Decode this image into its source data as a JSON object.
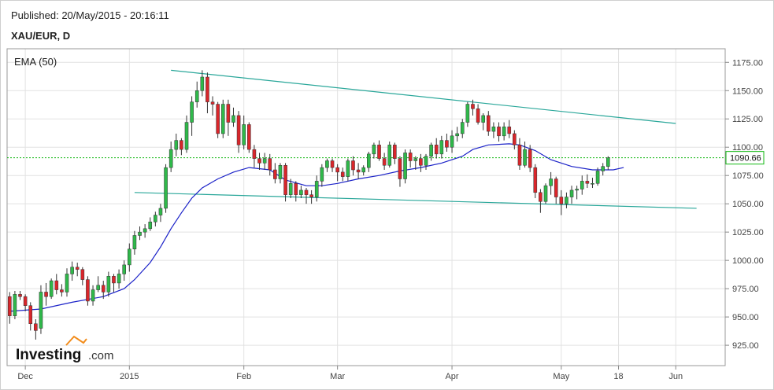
{
  "header": {
    "published": "Published: 20/May/2015 - 20:16:11",
    "symbol": "XAU/EUR, D"
  },
  "chart_data": {
    "type": "candlestick",
    "indicator_label": "EMA (50)",
    "brand": {
      "name": "Investing",
      "suffix": ".com"
    },
    "last_price_label": "1090.66",
    "y_ticks": [
      "1175.00",
      "1150.00",
      "1125.00",
      "1100.00",
      "1075.00",
      "1050.00",
      "1025.00",
      "1000.00",
      "975.00",
      "950.00",
      "925.00"
    ],
    "x_ticks": [
      {
        "label": "Dec",
        "index": 3
      },
      {
        "label": "2015",
        "index": 23
      },
      {
        "label": "Feb",
        "index": 45
      },
      {
        "label": "Mar",
        "index": 63
      },
      {
        "label": "Apr",
        "index": 85
      },
      {
        "label": "May",
        "index": 106
      },
      {
        "label": "18",
        "index": 117
      },
      {
        "label": "Jun",
        "index": 128
      }
    ],
    "ylim": [
      907,
      1187
    ],
    "x_range": [
      -0.5,
      137.5
    ],
    "colors": {
      "up": "#2fb84a",
      "down": "#d9262b",
      "ema": "#1b22c8",
      "trendline": "#2aa79a",
      "last_price": "#13b813",
      "grid": "#e2e2e2"
    },
    "trendlines": [
      {
        "from": [
          31,
          1168
        ],
        "to": [
          128,
          1121
        ]
      },
      {
        "from": [
          24,
          1060
        ],
        "to": [
          132,
          1046
        ]
      }
    ],
    "last_price": 1090.66,
    "candles": [
      [
        968,
        972,
        944,
        951
      ],
      [
        951,
        973,
        948,
        970
      ],
      [
        970,
        973,
        965,
        968
      ],
      [
        968,
        970,
        955,
        960
      ],
      [
        960,
        963,
        938,
        944
      ],
      [
        944,
        948,
        930,
        938
      ],
      [
        940,
        978,
        935,
        972
      ],
      [
        972,
        980,
        960,
        968
      ],
      [
        968,
        984,
        966,
        982
      ],
      [
        982,
        988,
        970,
        974
      ],
      [
        974,
        979,
        968,
        972
      ],
      [
        972,
        993,
        968,
        988
      ],
      [
        988,
        999,
        982,
        994
      ],
      [
        994,
        998,
        986,
        992
      ],
      [
        992,
        994,
        978,
        983
      ],
      [
        983,
        986,
        960,
        964
      ],
      [
        964,
        978,
        960,
        974
      ],
      [
        974,
        986,
        972,
        978
      ],
      [
        978,
        982,
        966,
        972
      ],
      [
        972,
        990,
        968,
        986
      ],
      [
        986,
        988,
        972,
        980
      ],
      [
        980,
        992,
        975,
        988
      ],
      [
        988,
        1000,
        982,
        996
      ],
      [
        996,
        1015,
        990,
        1010
      ],
      [
        1010,
        1026,
        1005,
        1022
      ],
      [
        1022,
        1030,
        1018,
        1025
      ],
      [
        1025,
        1032,
        1020,
        1028
      ],
      [
        1028,
        1038,
        1026,
        1034
      ],
      [
        1034,
        1043,
        1030,
        1040
      ],
      [
        1040,
        1050,
        1034,
        1046
      ],
      [
        1046,
        1085,
        1042,
        1082
      ],
      [
        1082,
        1105,
        1078,
        1098
      ],
      [
        1098,
        1112,
        1092,
        1106
      ],
      [
        1106,
        1108,
        1093,
        1098
      ],
      [
        1098,
        1128,
        1095,
        1122
      ],
      [
        1122,
        1145,
        1110,
        1140
      ],
      [
        1140,
        1158,
        1135,
        1150
      ],
      [
        1150,
        1168,
        1145,
        1162
      ],
      [
        1162,
        1166,
        1130,
        1140
      ],
      [
        1140,
        1145,
        1128,
        1138
      ],
      [
        1138,
        1140,
        1108,
        1112
      ],
      [
        1112,
        1142,
        1108,
        1138
      ],
      [
        1138,
        1142,
        1110,
        1122
      ],
      [
        1122,
        1135,
        1118,
        1128
      ],
      [
        1128,
        1132,
        1095,
        1102
      ],
      [
        1102,
        1128,
        1098,
        1120
      ],
      [
        1120,
        1122,
        1095,
        1098
      ],
      [
        1098,
        1102,
        1082,
        1090
      ],
      [
        1090,
        1095,
        1080,
        1086
      ],
      [
        1086,
        1095,
        1080,
        1090
      ],
      [
        1090,
        1094,
        1075,
        1080
      ],
      [
        1080,
        1086,
        1068,
        1072
      ],
      [
        1072,
        1086,
        1068,
        1084
      ],
      [
        1084,
        1086,
        1052,
        1058
      ],
      [
        1058,
        1072,
        1055,
        1068
      ],
      [
        1068,
        1070,
        1052,
        1058
      ],
      [
        1058,
        1066,
        1055,
        1062
      ],
      [
        1062,
        1064,
        1050,
        1058
      ],
      [
        1058,
        1062,
        1050,
        1056
      ],
      [
        1056,
        1075,
        1052,
        1070
      ],
      [
        1070,
        1085,
        1065,
        1082
      ],
      [
        1082,
        1090,
        1078,
        1088
      ],
      [
        1088,
        1090,
        1078,
        1082
      ],
      [
        1082,
        1085,
        1070,
        1078
      ],
      [
        1078,
        1082,
        1070,
        1074
      ],
      [
        1074,
        1090,
        1070,
        1088
      ],
      [
        1088,
        1092,
        1075,
        1080
      ],
      [
        1080,
        1086,
        1072,
        1078
      ],
      [
        1078,
        1084,
        1075,
        1082
      ],
      [
        1082,
        1096,
        1078,
        1094
      ],
      [
        1094,
        1104,
        1090,
        1102
      ],
      [
        1102,
        1106,
        1088,
        1090
      ],
      [
        1090,
        1095,
        1080,
        1084
      ],
      [
        1084,
        1105,
        1082,
        1102
      ],
      [
        1102,
        1104,
        1085,
        1090
      ],
      [
        1090,
        1092,
        1065,
        1072
      ],
      [
        1072,
        1098,
        1068,
        1095
      ],
      [
        1095,
        1098,
        1082,
        1088
      ],
      [
        1088,
        1092,
        1080,
        1090
      ],
      [
        1090,
        1094,
        1078,
        1084
      ],
      [
        1084,
        1094,
        1080,
        1092
      ],
      [
        1092,
        1104,
        1088,
        1102
      ],
      [
        1102,
        1108,
        1090,
        1094
      ],
      [
        1094,
        1110,
        1090,
        1106
      ],
      [
        1106,
        1112,
        1096,
        1100
      ],
      [
        1100,
        1115,
        1095,
        1110
      ],
      [
        1110,
        1118,
        1105,
        1112
      ],
      [
        1112,
        1125,
        1108,
        1122
      ],
      [
        1122,
        1140,
        1118,
        1138
      ],
      [
        1138,
        1142,
        1128,
        1134
      ],
      [
        1134,
        1138,
        1120,
        1122
      ],
      [
        1122,
        1130,
        1115,
        1128
      ],
      [
        1128,
        1132,
        1110,
        1114
      ],
      [
        1114,
        1122,
        1108,
        1118
      ],
      [
        1118,
        1122,
        1105,
        1110
      ],
      [
        1110,
        1122,
        1106,
        1118
      ],
      [
        1118,
        1124,
        1108,
        1112
      ],
      [
        1112,
        1115,
        1098,
        1102
      ],
      [
        1102,
        1108,
        1080,
        1084
      ],
      [
        1084,
        1105,
        1082,
        1098
      ],
      [
        1098,
        1102,
        1078,
        1082
      ],
      [
        1082,
        1085,
        1055,
        1060
      ],
      [
        1060,
        1063,
        1042,
        1052
      ],
      [
        1052,
        1068,
        1050,
        1066
      ],
      [
        1066,
        1078,
        1058,
        1072
      ],
      [
        1072,
        1074,
        1050,
        1056
      ],
      [
        1056,
        1062,
        1040,
        1050
      ],
      [
        1050,
        1060,
        1046,
        1056
      ],
      [
        1056,
        1066,
        1050,
        1062
      ],
      [
        1062,
        1066,
        1054,
        1063
      ],
      [
        1063,
        1075,
        1058,
        1070
      ],
      [
        1070,
        1076,
        1064,
        1068
      ],
      [
        1068,
        1073,
        1064,
        1068
      ],
      [
        1068,
        1082,
        1066,
        1079
      ],
      [
        1079,
        1086,
        1075,
        1083
      ],
      [
        1083,
        1092,
        1080,
        1090.66
      ]
    ],
    "ema": [
      [
        0,
        955
      ],
      [
        6,
        957
      ],
      [
        12,
        963
      ],
      [
        18,
        968
      ],
      [
        22,
        975
      ],
      [
        24,
        983
      ],
      [
        27,
        998
      ],
      [
        29,
        1012
      ],
      [
        31,
        1028
      ],
      [
        33,
        1042
      ],
      [
        35,
        1055
      ],
      [
        37,
        1064
      ],
      [
        40,
        1072
      ],
      [
        43,
        1078
      ],
      [
        46,
        1082
      ],
      [
        50,
        1080
      ],
      [
        53,
        1071
      ],
      [
        57,
        1066
      ],
      [
        60,
        1066
      ],
      [
        63,
        1068
      ],
      [
        67,
        1072
      ],
      [
        71,
        1075
      ],
      [
        75,
        1079
      ],
      [
        79,
        1082
      ],
      [
        83,
        1086
      ],
      [
        87,
        1092
      ],
      [
        89,
        1098
      ],
      [
        92,
        1102
      ],
      [
        96,
        1103
      ],
      [
        98,
        1102
      ],
      [
        101,
        1097
      ],
      [
        104,
        1089
      ],
      [
        108,
        1083
      ],
      [
        112,
        1080
      ],
      [
        116,
        1080
      ],
      [
        118,
        1082
      ]
    ]
  }
}
